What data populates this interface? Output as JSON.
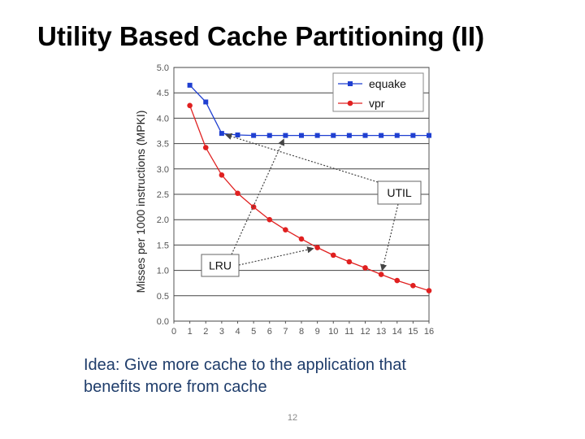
{
  "slide": {
    "title": "Utility Based Cache Partitioning (II)",
    "caption": "Idea: Give more cache to the application that benefits more from cache",
    "page_number": "12"
  },
  "chart_data": {
    "type": "line",
    "title": "",
    "xlabel": "",
    "ylabel": "Misses per 1000 instructions (MPKI)",
    "xlim": [
      0,
      16
    ],
    "ylim": [
      0,
      5
    ],
    "grid": true,
    "x": [
      1,
      2,
      3,
      4,
      5,
      6,
      7,
      8,
      9,
      10,
      11,
      12,
      13,
      14,
      15,
      16
    ],
    "x_ticks": [
      "0",
      "1",
      "2",
      "3",
      "4",
      "5",
      "6",
      "7",
      "8",
      "9",
      "10",
      "11",
      "12",
      "13",
      "14",
      "15",
      "16"
    ],
    "y_ticks": [
      "0.0",
      "0.5",
      "1.0",
      "1.5",
      "2.0",
      "2.5",
      "3.0",
      "3.5",
      "4.0",
      "4.5",
      "5.0"
    ],
    "series": [
      {
        "name": "equake",
        "color": "#1f3fd1",
        "marker": "square",
        "values": [
          4.65,
          4.32,
          3.7,
          3.67,
          3.66,
          3.66,
          3.66,
          3.66,
          3.66,
          3.66,
          3.66,
          3.66,
          3.66,
          3.66,
          3.66,
          3.66
        ]
      },
      {
        "name": "vpr",
        "color": "#e02020",
        "marker": "circle",
        "values": [
          4.25,
          3.42,
          2.88,
          2.52,
          2.25,
          2.0,
          1.8,
          1.62,
          1.45,
          1.3,
          1.17,
          1.05,
          0.92,
          0.8,
          0.7,
          0.6
        ]
      }
    ],
    "legend_position": "top-right",
    "annotations": [
      {
        "label": "UTIL",
        "arrows_to": [
          {
            "series": "equake",
            "x": 3
          },
          {
            "series": "vpr",
            "x": 13
          }
        ]
      },
      {
        "label": "LRU",
        "arrows_to": [
          {
            "series": "equake",
            "x": 7
          },
          {
            "series": "vpr",
            "x": 9
          }
        ]
      }
    ]
  }
}
